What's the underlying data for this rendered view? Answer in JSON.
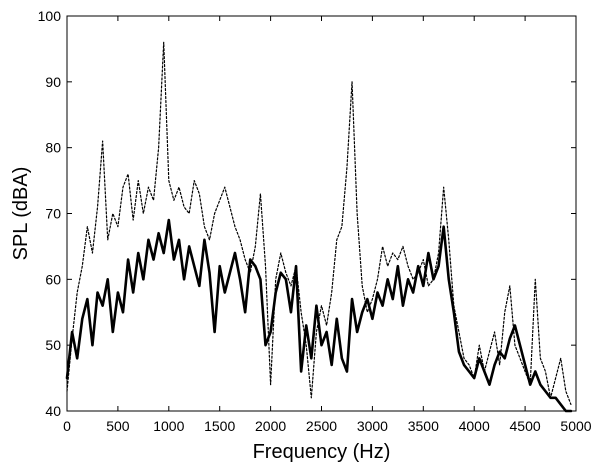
{
  "chart_data": {
    "type": "line",
    "xlabel": "Frequency (Hz)",
    "ylabel": "SPL (dBA)",
    "xlim": [
      0,
      5000
    ],
    "ylim": [
      40,
      100
    ],
    "xticks": [
      "0",
      "500",
      "1000",
      "1500",
      "2000",
      "2500",
      "3000",
      "3500",
      "4000",
      "4500",
      "5000"
    ],
    "yticks": [
      "40",
      "50",
      "60",
      "70",
      "80",
      "90",
      "100"
    ],
    "grid": false,
    "legend": "none",
    "series": [
      {
        "style": "dotted",
        "color": "#000000",
        "x": [
          0,
          50,
          100,
          150,
          200,
          250,
          300,
          350,
          400,
          450,
          500,
          550,
          600,
          650,
          700,
          750,
          800,
          850,
          900,
          950,
          1000,
          1050,
          1100,
          1150,
          1200,
          1250,
          1300,
          1350,
          1400,
          1450,
          1500,
          1550,
          1600,
          1650,
          1700,
          1750,
          1800,
          1850,
          1900,
          1950,
          2000,
          2050,
          2100,
          2150,
          2200,
          2250,
          2300,
          2350,
          2400,
          2450,
          2500,
          2550,
          2600,
          2650,
          2700,
          2750,
          2800,
          2850,
          2900,
          2950,
          3000,
          3050,
          3100,
          3150,
          3200,
          3250,
          3300,
          3350,
          3400,
          3450,
          3500,
          3550,
          3600,
          3650,
          3700,
          3750,
          3800,
          3850,
          3900,
          3950,
          4000,
          4050,
          4100,
          4150,
          4200,
          4250,
          4300,
          4350,
          4400,
          4450,
          4500,
          4550,
          4600,
          4650,
          4700,
          4750,
          4800,
          4850,
          4900,
          4950
        ],
        "y": [
          43,
          51,
          58,
          62,
          68,
          64,
          71,
          81,
          66,
          70,
          68,
          74,
          76,
          69,
          75,
          70,
          74,
          72,
          80,
          96,
          75,
          72,
          74,
          71,
          70,
          75,
          73,
          68,
          66,
          70,
          72,
          74,
          71,
          68,
          66,
          63,
          61,
          65,
          73,
          62,
          44,
          60,
          64,
          61,
          59,
          62,
          55,
          50,
          42,
          52,
          56,
          53,
          58,
          66,
          68,
          77,
          90,
          70,
          59,
          55,
          57,
          60,
          65,
          62,
          64,
          63,
          65,
          62,
          60,
          61,
          63,
          59,
          60,
          64,
          74,
          66,
          56,
          52,
          48,
          47,
          45,
          50,
          46,
          49,
          52,
          47,
          55,
          59,
          50,
          48,
          46,
          44,
          60,
          48,
          46,
          42,
          45,
          48,
          43,
          41
        ]
      },
      {
        "style": "solid",
        "color": "#000000",
        "x": [
          0,
          50,
          100,
          150,
          200,
          250,
          300,
          350,
          400,
          450,
          500,
          550,
          600,
          650,
          700,
          750,
          800,
          850,
          900,
          950,
          1000,
          1050,
          1100,
          1150,
          1200,
          1250,
          1300,
          1350,
          1400,
          1450,
          1500,
          1550,
          1600,
          1650,
          1700,
          1750,
          1800,
          1850,
          1900,
          1950,
          2000,
          2050,
          2100,
          2150,
          2200,
          2250,
          2300,
          2350,
          2400,
          2450,
          2500,
          2550,
          2600,
          2650,
          2700,
          2750,
          2800,
          2850,
          2900,
          2950,
          3000,
          3050,
          3100,
          3150,
          3200,
          3250,
          3300,
          3350,
          3400,
          3450,
          3500,
          3550,
          3600,
          3650,
          3700,
          3750,
          3800,
          3850,
          3900,
          3950,
          4000,
          4050,
          4100,
          4150,
          4200,
          4250,
          4300,
          4350,
          4400,
          4450,
          4500,
          4550,
          4600,
          4650,
          4700,
          4750,
          4800,
          4850,
          4900,
          4950
        ],
        "y": [
          45,
          52,
          48,
          54,
          57,
          50,
          58,
          56,
          60,
          52,
          58,
          55,
          63,
          58,
          64,
          60,
          66,
          63,
          67,
          64,
          69,
          63,
          66,
          60,
          65,
          62,
          59,
          66,
          61,
          52,
          62,
          58,
          61,
          64,
          60,
          55,
          63,
          62,
          60,
          50,
          52,
          58,
          61,
          60,
          55,
          62,
          46,
          53,
          48,
          56,
          50,
          52,
          47,
          54,
          48,
          46,
          57,
          52,
          55,
          57,
          54,
          58,
          56,
          60,
          57,
          62,
          56,
          60,
          58,
          62,
          59,
          64,
          60,
          62,
          68,
          60,
          55,
          49,
          47,
          46,
          45,
          48,
          46,
          44,
          47,
          49,
          48,
          51,
          53,
          50,
          47,
          44,
          46,
          44,
          43,
          42,
          42,
          41,
          40,
          40
        ]
      }
    ]
  }
}
